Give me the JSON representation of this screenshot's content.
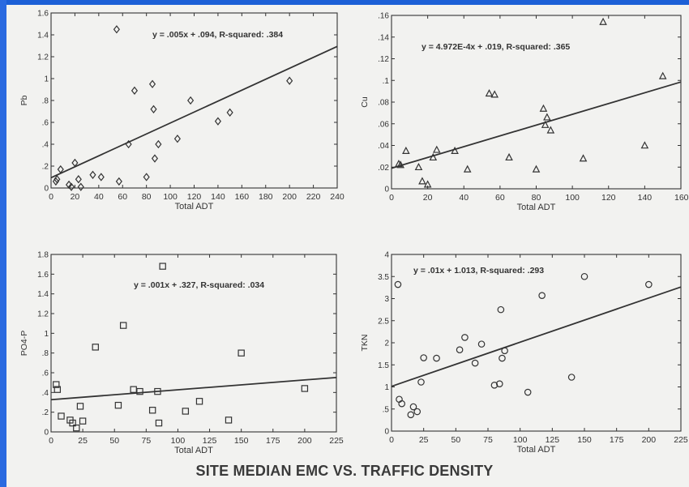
{
  "footer_title": "SITE MEDIAN EMC VS. TRAFFIC DENSITY",
  "colors": {
    "frame": "#1c5fd6",
    "paper": "#f2f2f0",
    "ink": "#333333"
  },
  "chart_data": [
    {
      "type": "scatter",
      "id": "pb",
      "xlabel": "Total ADT",
      "ylabel": "Pb",
      "xlim": [
        0,
        240
      ],
      "ylim": [
        0,
        1.6
      ],
      "xticks": [
        "0",
        "20",
        "40",
        "60",
        "80",
        "100",
        "120",
        "140",
        "160",
        "180",
        "200",
        "220",
        "240"
      ],
      "yticks": [
        "0",
        ".2",
        ".4",
        ".6",
        ".8",
        "1",
        "1.2",
        "1.4",
        "1.6"
      ],
      "marker": "diamond",
      "equation": "y = .005x + .094, R-squared: .384",
      "fit": {
        "slope": 0.005,
        "intercept": 0.094
      },
      "points": [
        [
          4,
          0.06
        ],
        [
          5,
          0.08
        ],
        [
          8,
          0.17
        ],
        [
          15,
          0.03
        ],
        [
          17,
          0.01
        ],
        [
          20,
          0.23
        ],
        [
          23,
          0.08
        ],
        [
          25,
          0.01
        ],
        [
          35,
          0.12
        ],
        [
          42,
          0.1
        ],
        [
          55,
          1.45
        ],
        [
          57,
          0.06
        ],
        [
          65,
          0.4
        ],
        [
          70,
          0.89
        ],
        [
          80,
          0.1
        ],
        [
          85,
          0.95
        ],
        [
          86,
          0.72
        ],
        [
          87,
          0.27
        ],
        [
          90,
          0.4
        ],
        [
          106,
          0.45
        ],
        [
          117,
          0.8
        ],
        [
          140,
          0.61
        ],
        [
          150,
          0.69
        ],
        [
          200,
          0.98
        ]
      ]
    },
    {
      "type": "scatter",
      "id": "cu",
      "xlabel": "Total ADT",
      "ylabel": "Cu",
      "xlim": [
        0,
        160
      ],
      "ylim": [
        0,
        0.16
      ],
      "xticks": [
        "0",
        "20",
        "40",
        "60",
        "80",
        "100",
        "120",
        "140",
        "160"
      ],
      "yticks": [
        "0",
        ".02",
        ".04",
        ".06",
        ".08",
        ".1",
        ".12",
        ".14",
        ".16"
      ],
      "marker": "triangle",
      "equation": "y = 4.972E-4x + .019, R-squared: .365",
      "fit": {
        "slope": 0.0004972,
        "intercept": 0.019
      },
      "points": [
        [
          4,
          0.023
        ],
        [
          5,
          0.022
        ],
        [
          8,
          0.035
        ],
        [
          15,
          0.02
        ],
        [
          17,
          0.007
        ],
        [
          20,
          0.004
        ],
        [
          23,
          0.029
        ],
        [
          25,
          0.036
        ],
        [
          35,
          0.035
        ],
        [
          42,
          0.018
        ],
        [
          54,
          0.088
        ],
        [
          57,
          0.087
        ],
        [
          65,
          0.029
        ],
        [
          80,
          0.018
        ],
        [
          84,
          0.074
        ],
        [
          85,
          0.059
        ],
        [
          86,
          0.066
        ],
        [
          88,
          0.054
        ],
        [
          106,
          0.028
        ],
        [
          117,
          0.154
        ],
        [
          140,
          0.04
        ],
        [
          150,
          0.104
        ]
      ]
    },
    {
      "type": "scatter",
      "id": "po4p",
      "xlabel": "Total ADT",
      "ylabel": "PO4-P",
      "xlim": [
        0,
        225
      ],
      "ylim": [
        0,
        1.8
      ],
      "xticks": [
        "0",
        "25",
        "50",
        "75",
        "100",
        "125",
        "150",
        "175",
        "200",
        "225"
      ],
      "yticks": [
        "0",
        ".2",
        ".4",
        ".6",
        ".8",
        "1",
        "1.2",
        "1.4",
        "1.6",
        "1.8"
      ],
      "marker": "square",
      "equation": "y = .001x + .327, R-squared: .034",
      "fit": {
        "slope": 0.001,
        "intercept": 0.327
      },
      "points": [
        [
          4,
          0.48
        ],
        [
          5,
          0.43
        ],
        [
          8,
          0.16
        ],
        [
          15,
          0.12
        ],
        [
          17,
          0.09
        ],
        [
          20,
          0.04
        ],
        [
          23,
          0.26
        ],
        [
          25,
          0.11
        ],
        [
          35,
          0.86
        ],
        [
          53,
          0.27
        ],
        [
          57,
          1.08
        ],
        [
          65,
          0.43
        ],
        [
          70,
          0.41
        ],
        [
          80,
          0.22
        ],
        [
          84,
          0.41
        ],
        [
          85,
          0.09
        ],
        [
          88,
          1.68
        ],
        [
          106,
          0.21
        ],
        [
          117,
          0.31
        ],
        [
          140,
          0.12
        ],
        [
          150,
          0.8
        ],
        [
          200,
          0.44
        ]
      ]
    },
    {
      "type": "scatter",
      "id": "tkn",
      "xlabel": "Total ADT",
      "ylabel": "TKN",
      "xlim": [
        0,
        225
      ],
      "ylim": [
        0,
        4
      ],
      "xticks": [
        "0",
        "25",
        "50",
        "75",
        "100",
        "125",
        "150",
        "175",
        "200",
        "225"
      ],
      "yticks": [
        "0",
        ".5",
        "1",
        "1.5",
        "2",
        "2.5",
        "3",
        "3.5",
        "4"
      ],
      "marker": "circle",
      "equation": "y = .01x + 1.013, R-squared: .293",
      "fit": {
        "slope": 0.01,
        "intercept": 1.013
      },
      "points": [
        [
          5,
          3.32
        ],
        [
          6,
          0.72
        ],
        [
          8,
          0.62
        ],
        [
          15,
          0.37
        ],
        [
          17,
          0.55
        ],
        [
          20,
          0.44
        ],
        [
          23,
          1.11
        ],
        [
          25,
          1.66
        ],
        [
          35,
          1.65
        ],
        [
          53,
          1.84
        ],
        [
          57,
          2.12
        ],
        [
          65,
          1.54
        ],
        [
          70,
          1.97
        ],
        [
          80,
          1.04
        ],
        [
          84,
          1.07
        ],
        [
          85,
          2.75
        ],
        [
          86,
          1.65
        ],
        [
          88,
          1.82
        ],
        [
          106,
          0.88
        ],
        [
          117,
          3.07
        ],
        [
          140,
          1.22
        ],
        [
          150,
          3.5
        ],
        [
          200,
          3.32
        ]
      ]
    }
  ]
}
